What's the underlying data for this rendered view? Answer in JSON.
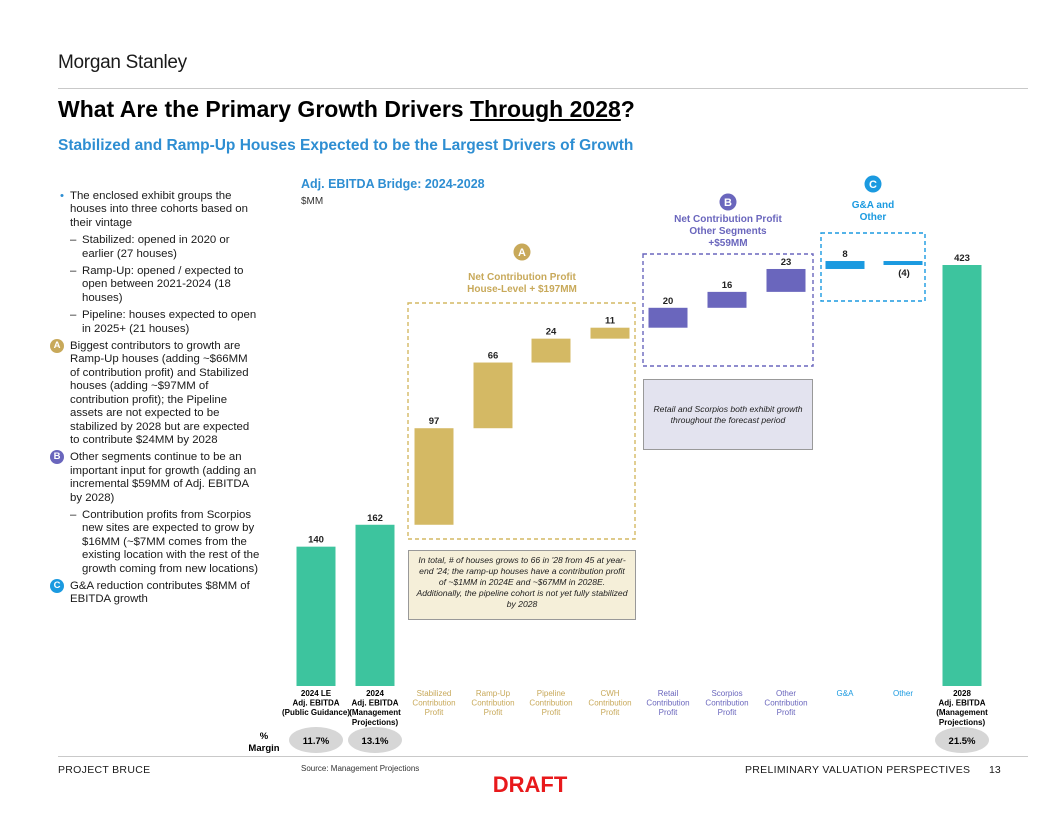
{
  "header": {
    "logo": "Morgan Stanley",
    "title_main": "What Are the Primary Growth Drivers ",
    "title_underlined": "Through 2028",
    "title_end": "?",
    "subtitle": "Stabilized and Ramp-Up Houses Expected to be the Largest Drivers of Growth"
  },
  "bullets": {
    "intro": "The enclosed exhibit groups the houses into three cohorts based on their vintage",
    "sub1": "Stabilized: opened in 2020 or earlier (27 houses)",
    "sub2": "Ramp-Up: opened / expected to open between 2021-2024 (18 houses)",
    "sub3": "Pipeline: houses expected to open in 2025+ (21 houses)",
    "a_label": "A",
    "a_text": "Biggest contributors to growth are Ramp-Up houses (adding ~$66MM of contribution profit) and Stabilized houses (adding ~$97MM of contribution profit); the Pipeline assets are not expected to be stabilized by 2028 but are expected to contribute $24MM by 2028",
    "b_label": "B",
    "b_text": "Other segments continue to be an important input for growth (adding an incremental $59MM of Adj. EBITDA by 2028)",
    "b_sub": "Contribution profits from Scorpios new sites are expected to grow by $16MM (~$7MM comes from the existing location with the rest of the growth coming from new locations)",
    "c_label": "C",
    "c_text": "G&A reduction contributes $8MM of EBITDA growth"
  },
  "chart_header": {
    "title": "Adj. EBITDA Bridge: 2024-2028",
    "unit": "$MM"
  },
  "chart_data": {
    "type": "bar",
    "subtype": "waterfall",
    "title": "Adj. EBITDA Bridge: 2024-2028",
    "ylabel": "$MM",
    "categories": [
      "2024 LE Adj. EBITDA (Public Guidance)",
      "2024 Adj. EBITDA (Management Projections)",
      "Stabilized Contribution Profit",
      "Ramp-Up Contribution Profit",
      "Pipeline Contribution Profit",
      "CWH Contribution Profit",
      "Retail Contribution Profit",
      "Scorpios Contribution Profit",
      "Other Contribution Profit",
      "G&A",
      "Other",
      "2028 Adj. EBITDA (Management Projections)"
    ],
    "axis_labels": [
      [
        "2024 LE",
        "Adj. EBITDA",
        "(Public Guidance)"
      ],
      [
        "2024",
        "Adj. EBITDA",
        "(Management",
        "Projections)"
      ],
      [
        "Stabilized",
        "Contribution",
        "Profit"
      ],
      [
        "Ramp-Up",
        "Contribution",
        "Profit"
      ],
      [
        "Pipeline",
        "Contribution",
        "Profit"
      ],
      [
        "CWH",
        "Contribution",
        "Profit"
      ],
      [
        "Retail",
        "Contribution",
        "Profit"
      ],
      [
        "Scorpios",
        "Contribution",
        "Profit"
      ],
      [
        "Other",
        "Contribution",
        "Profit"
      ],
      [
        "G&A"
      ],
      [
        "Other"
      ],
      [
        "2028",
        "Adj. EBITDA",
        "(Management",
        "Projections)"
      ]
    ],
    "values": [
      140,
      162,
      97,
      66,
      24,
      11,
      20,
      16,
      23,
      8,
      -4,
      423
    ],
    "value_labels": [
      "140",
      "162",
      "97",
      "66",
      "24",
      "11",
      "20",
      "16",
      "23",
      "8",
      "(4)",
      "423"
    ],
    "kinds": [
      "total",
      "total",
      "delta",
      "delta",
      "delta",
      "delta",
      "delta",
      "delta",
      "delta",
      "delta",
      "delta",
      "total"
    ],
    "groups": [
      "total",
      "total",
      "A",
      "A",
      "A",
      "A",
      "B",
      "B",
      "B",
      "C",
      "C",
      "total"
    ],
    "colors": {
      "total": "#3dc49e",
      "A": "#d4b964",
      "B": "#6a66bd",
      "C": "#1b9ae0",
      "label_A": "#c8a95a",
      "label_B": "#6a66bd",
      "label_C": "#1b9ae0",
      "label_total": "#000000"
    },
    "ylim": [
      0,
      423
    ],
    "grid": false,
    "legend": "none",
    "margin_label": [
      "%",
      "Margin"
    ],
    "margins": [
      "11.7%",
      "13.1%",
      "",
      "",
      "",
      "",
      "",
      "",
      "",
      "",
      "",
      "21.5%"
    ]
  },
  "annotations": {
    "a": {
      "letter": "A",
      "lines": [
        "Net Contribution Profit",
        "House-Level + $197MM"
      ]
    },
    "b": {
      "letter": "B",
      "lines": [
        "Net Contribution Profit",
        "Other Segments",
        "+$59MM"
      ]
    },
    "c": {
      "letter": "C",
      "lines": [
        "G&A and",
        "Other"
      ]
    },
    "note1": "In total, # of houses grows to 66 in '28 from 45 at year-end '24; the ramp-up houses have a contribution profit of ~$1MM in 2024E and ~$67MM in 2028E. Additionally, the pipeline cohort is not yet fully stabilized by 2028",
    "note2": "Retail and Scorpios both exhibit growth throughout the forecast period"
  },
  "footer": {
    "project": "PROJECT BRUCE",
    "source": "Source: Management Projections",
    "right": "PRELIMINARY VALUATION PERSPECTIVES",
    "page": "13",
    "draft": "DRAFT"
  }
}
